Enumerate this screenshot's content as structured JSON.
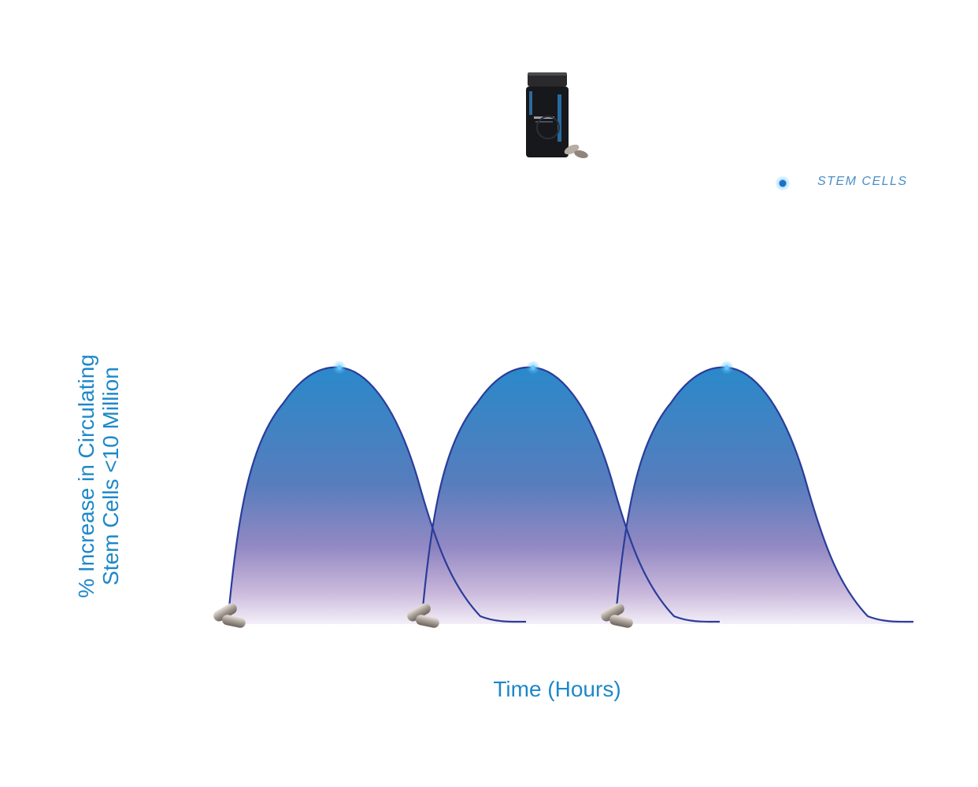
{
  "chart_data": {
    "type": "area",
    "title": "",
    "ylabel_lines": [
      "% Increase in Circulating",
      "Stem Cells <10 Million"
    ],
    "xlabel": "Time (Hours)",
    "legend": {
      "label": "STEM CELLS",
      "placement": "top-right"
    },
    "series": [
      {
        "name": "STEM CELLS",
        "dose": 1,
        "peak": 1
      },
      {
        "name": "STEM CELLS",
        "dose": 2,
        "peak": 1
      },
      {
        "name": "STEM CELLS",
        "dose": 3,
        "peak": 1
      }
    ],
    "grid": false,
    "colors": {
      "line": "#2a3d9a",
      "fill_top": "#1c7fc6",
      "fill_bottom": "#9e82c6",
      "label": "#1e88c9"
    },
    "icons": [
      "capsule-pair-icon",
      "supplement-bottle-icon"
    ]
  }
}
